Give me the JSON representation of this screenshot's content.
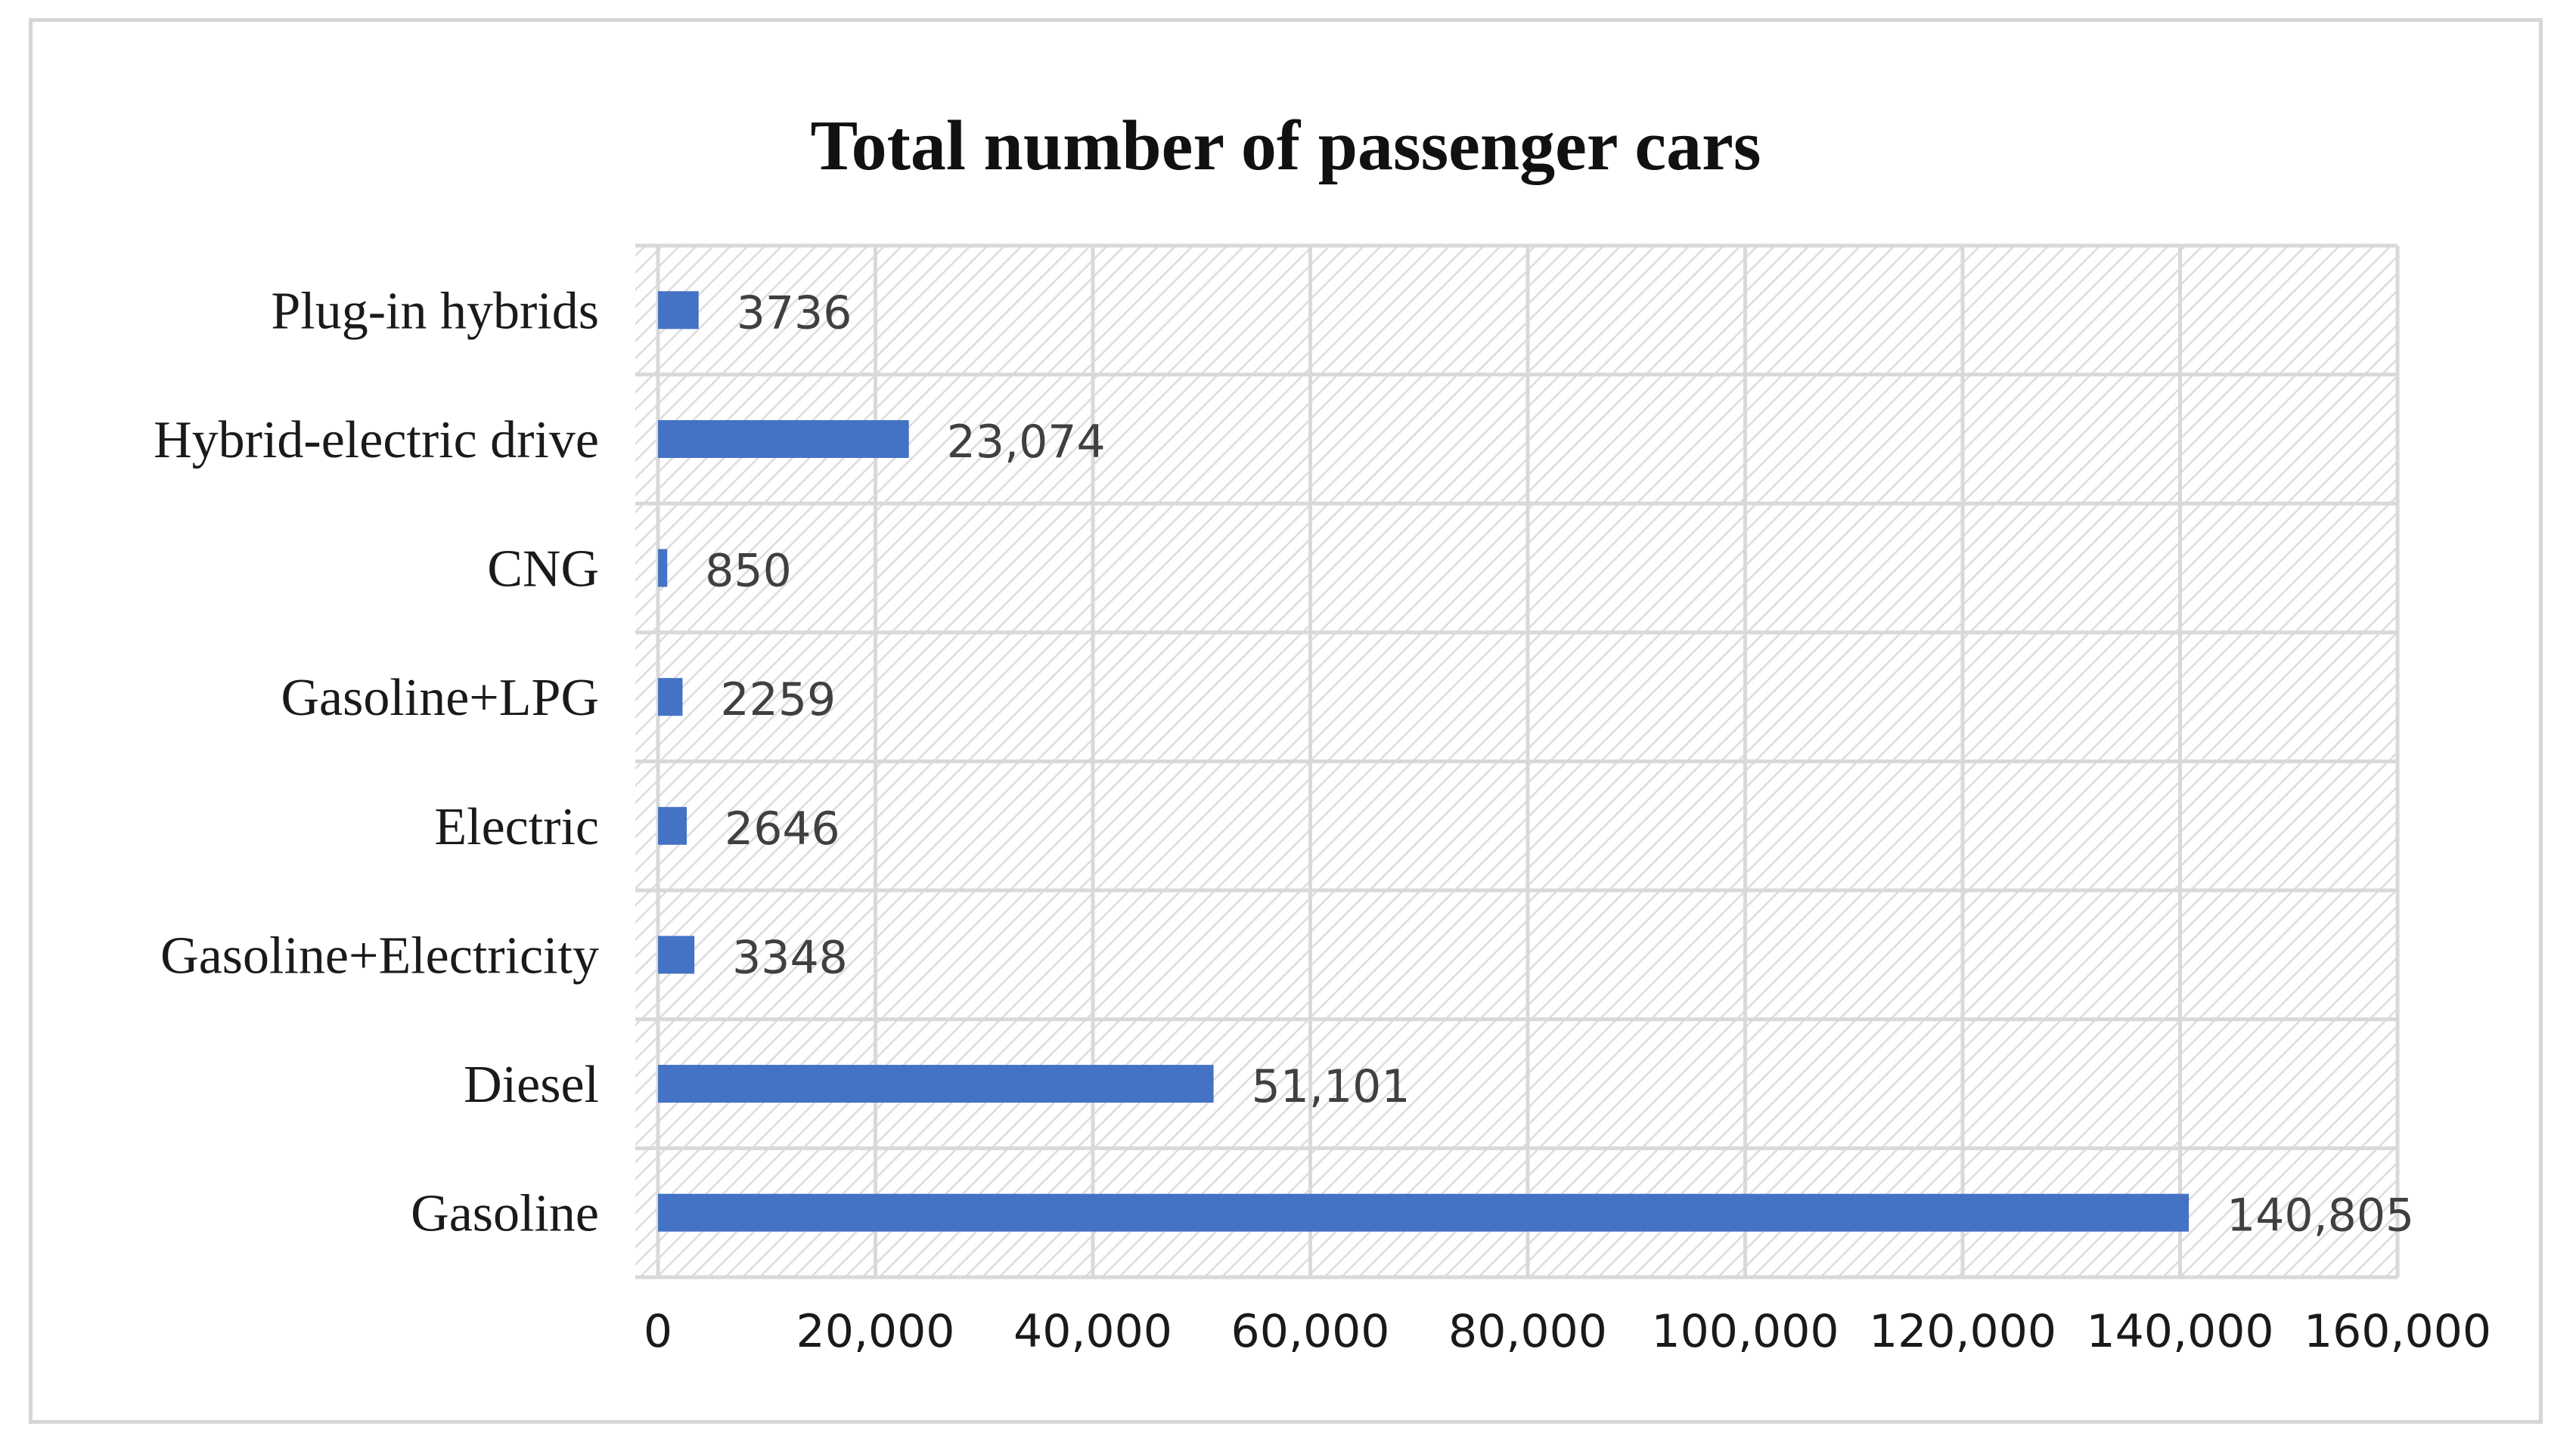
{
  "chart_data": {
    "type": "bar",
    "orientation": "horizontal",
    "title": "Total number of passenger cars",
    "xlabel": "",
    "ylabel": "",
    "categories": [
      "Gasoline",
      "Diesel",
      "Gasoline+Electricity",
      "Electric",
      "Gasoline+LPG",
      "CNG",
      "Hybrid-electric drive",
      "Plug-in hybrids"
    ],
    "values": [
      140805,
      51101,
      3348,
      2646,
      2259,
      850,
      23074,
      3736
    ],
    "data_labels": [
      "140,805",
      "51,101",
      "3348",
      "2646",
      "2259",
      "850",
      "23,074",
      "3736"
    ],
    "xlim": [
      0,
      160000
    ],
    "x_ticks": [
      0,
      20000,
      40000,
      60000,
      80000,
      100000,
      120000,
      140000,
      160000
    ],
    "x_tick_labels": [
      "0",
      "20,000",
      "40,000",
      "60,000",
      "80,000",
      "100,000",
      "120,000",
      "140,000",
      "160,000"
    ],
    "grid": true,
    "plot_background": "hatched",
    "legend": "none",
    "colors": {
      "bar": "#4472c4",
      "grid": "#d9d9d9",
      "hatch": "#dcdcdc",
      "frame": "#d6d6d6"
    }
  }
}
